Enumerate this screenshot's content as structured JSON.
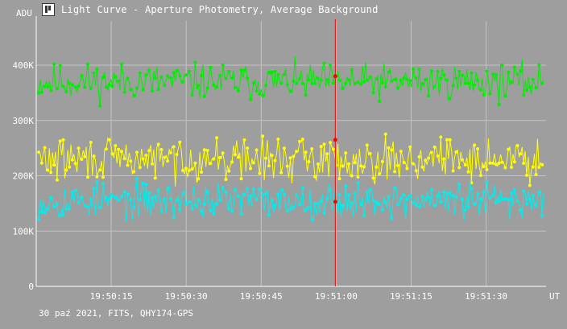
{
  "window": {
    "title": "Light Curve - Aperture Photometry, Average Background",
    "footer": "30 paź 2021, FITS, QHY174-GPS",
    "icon": "light-curve-app-icon"
  },
  "colors": {
    "background": "#9e9e9e",
    "grid": "#c4c4c4",
    "axis": "#ffffff",
    "series_top": "#00ee00",
    "series_mid": "#ffff00",
    "series_low": "#00eeee",
    "cursor": "#ff0000"
  },
  "chart_data": {
    "type": "line",
    "y_unit_label": "ADU",
    "x_unit_label": "UT",
    "ylim": [
      0,
      480000
    ],
    "yticks": [
      {
        "value": 0,
        "label": "0"
      },
      {
        "value": 100000,
        "label": "100K"
      },
      {
        "value": 200000,
        "label": "200K"
      },
      {
        "value": 300000,
        "label": "300K"
      },
      {
        "value": 400000,
        "label": "400K"
      }
    ],
    "xticks": [
      "19:50:15",
      "19:50:30",
      "19:50:45",
      "19:51:00",
      "19:51:15",
      "19:51:30"
    ],
    "time_range": [
      "19:50:00",
      "19:51:42"
    ],
    "cursor_time": "19:51:00",
    "grid": true,
    "series": [
      {
        "color": "#00ee00",
        "mean": 370000,
        "spread": 30000,
        "seed": 11
      },
      {
        "color": "#ffff00",
        "mean": 230000,
        "spread": 35000,
        "seed": 29
      },
      {
        "color": "#00eeee",
        "mean": 155000,
        "spread": 30000,
        "seed": 53
      }
    ],
    "cursor_values": [
      380000,
      265000,
      153000
    ]
  }
}
